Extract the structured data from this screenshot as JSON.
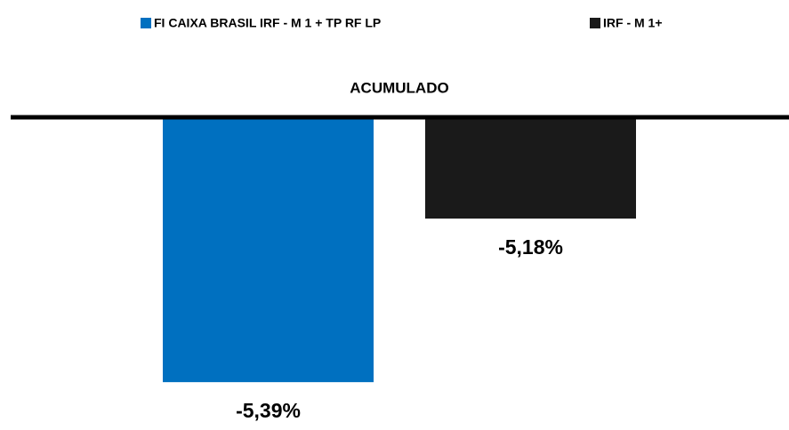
{
  "chart_data": {
    "type": "bar",
    "categories": [
      "ACUMULADO"
    ],
    "series": [
      {
        "name": "FI CAIXA BRASIL IRF - M 1 + TP RF LP",
        "color": "#0070c0",
        "values": [
          -5.39
        ],
        "value_labels": [
          "-5,39%"
        ]
      },
      {
        "name": "IRF - M 1+",
        "color": "#1a1a1a",
        "values": [
          -5.18
        ],
        "value_labels": [
          "-5,18%"
        ]
      }
    ],
    "ylim": [
      -5.44,
      -5.05
    ],
    "legend": "top"
  }
}
